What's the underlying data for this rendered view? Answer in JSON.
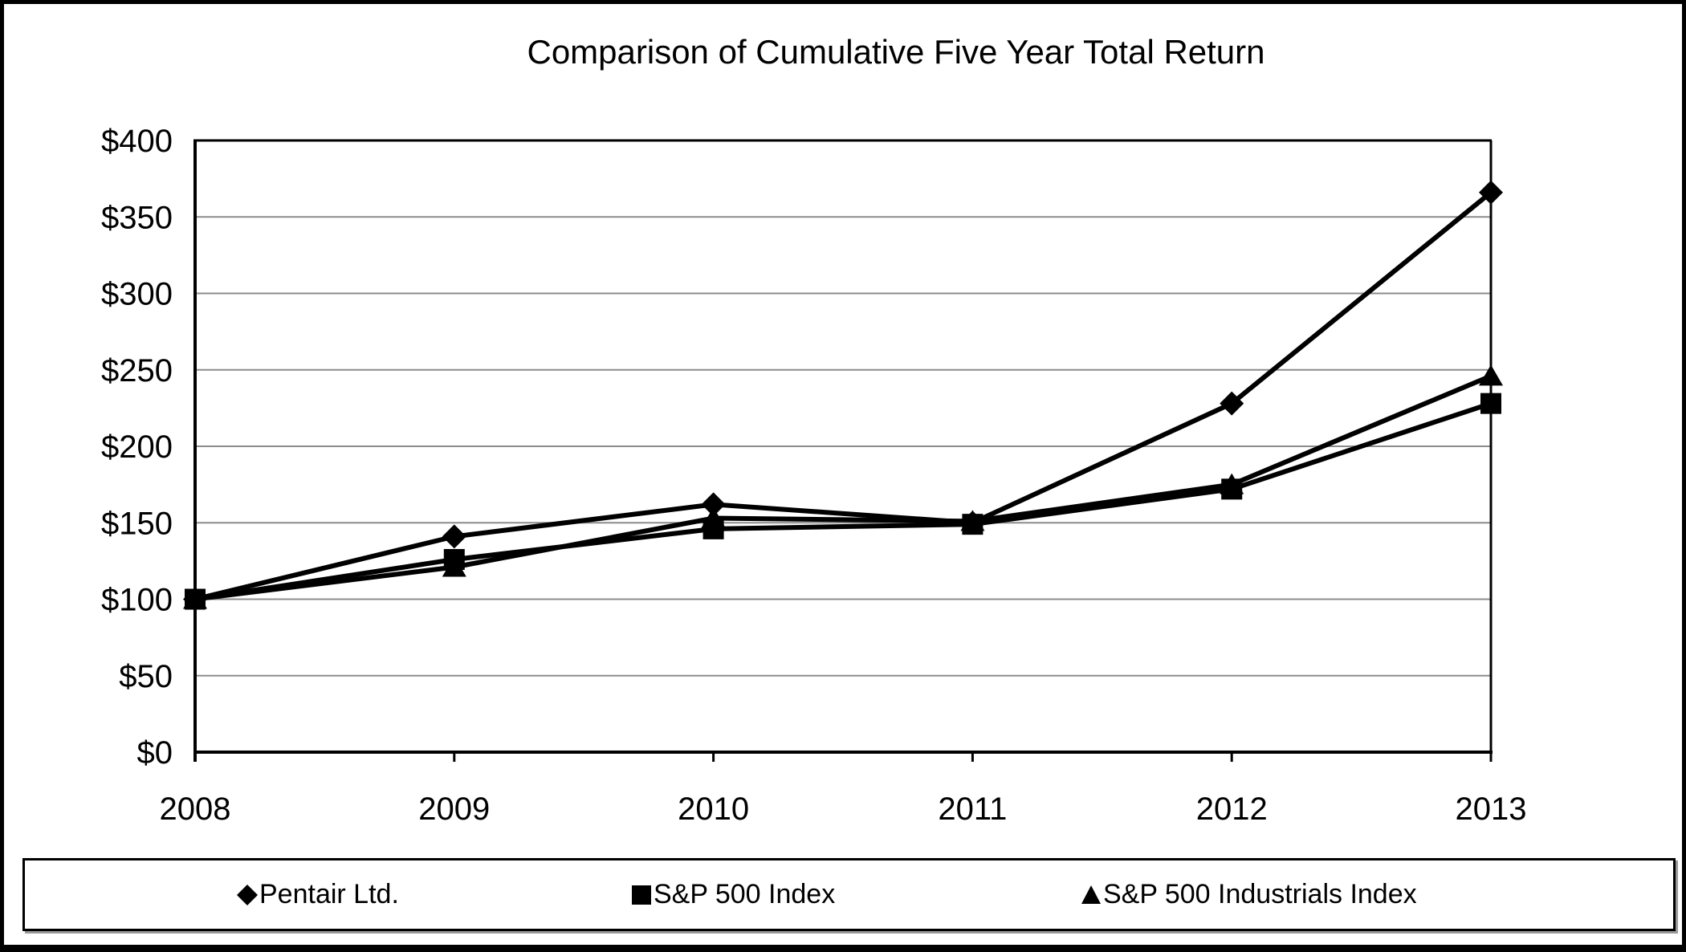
{
  "title": "Comparison of Cumulative Five Year Total Return",
  "colors": {
    "series": "#000000",
    "gridline": "#8c8c8c",
    "axis": "#000000",
    "background": "#ffffff",
    "legend_shadow": "#999999"
  },
  "chart_data": {
    "type": "line",
    "title": "Comparison of Cumulative Five Year Total Return",
    "categories": [
      "2008",
      "2009",
      "2010",
      "2011",
      "2012",
      "2013"
    ],
    "series": [
      {
        "name": "Pentair Ltd.",
        "marker": "diamond",
        "values": [
          100,
          141,
          162,
          150,
          228,
          366
        ]
      },
      {
        "name": "S&P 500 Index",
        "marker": "square",
        "values": [
          100,
          126,
          146,
          149,
          172,
          228
        ]
      },
      {
        "name": "S&P 500 Industrials Index",
        "marker": "triangle",
        "values": [
          100,
          121,
          153,
          151,
          175,
          246
        ]
      }
    ],
    "xlabel": "",
    "ylabel": "",
    "y_ticks": [
      0,
      50,
      100,
      150,
      200,
      250,
      300,
      350,
      400
    ],
    "y_tick_labels": [
      "$0",
      "$50",
      "$100",
      "$150",
      "$200",
      "$250",
      "$300",
      "$350",
      "$400"
    ],
    "ylim": [
      0,
      400
    ],
    "grid": true,
    "legend_position": "bottom"
  },
  "legend": {
    "items": [
      {
        "label": "Pentair Ltd.",
        "marker": "diamond",
        "glyph": "◆"
      },
      {
        "label": "S&P 500 Index",
        "marker": "square",
        "glyph": "■"
      },
      {
        "label": "S&P 500 Industrials Index",
        "marker": "triangle",
        "glyph": "▲"
      }
    ]
  }
}
